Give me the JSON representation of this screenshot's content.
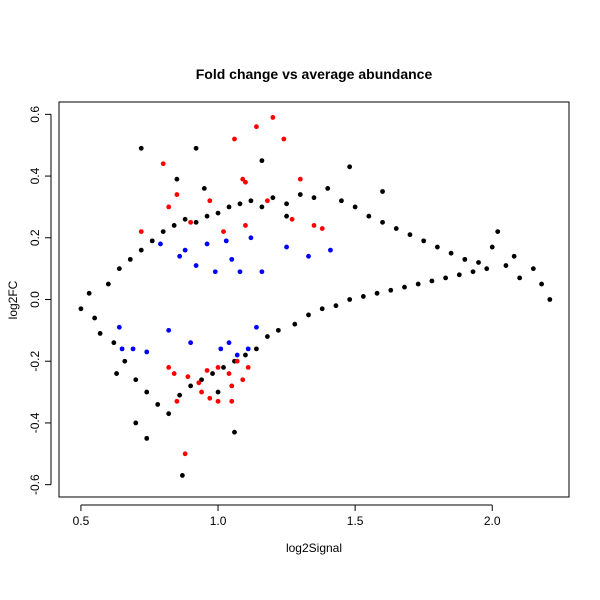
{
  "chart_data": {
    "type": "scatter",
    "title": "Fold change vs average abundance",
    "xlabel": "log2Signal",
    "ylabel": "log2FC",
    "xlim": [
      0.42,
      2.28
    ],
    "ylim": [
      -0.64,
      0.64
    ],
    "x_ticks": [
      {
        "value": 0.5,
        "label": "0.5"
      },
      {
        "value": 1.0,
        "label": "1.0"
      },
      {
        "value": 1.5,
        "label": "1.5"
      },
      {
        "value": 2.0,
        "label": "2.0"
      }
    ],
    "y_ticks": [
      {
        "value": -0.6,
        "label": "-0.6"
      },
      {
        "value": -0.4,
        "label": "-0.4"
      },
      {
        "value": -0.2,
        "label": "-0.2"
      },
      {
        "value": 0.0,
        "label": "0.0"
      },
      {
        "value": 0.2,
        "label": "0.2"
      },
      {
        "value": 0.4,
        "label": "0.4"
      },
      {
        "value": 0.6,
        "label": "0.6"
      }
    ],
    "grid": false,
    "legend": "none",
    "series": [
      {
        "color": "#000000",
        "points": [
          [
            0.5,
            -0.03
          ],
          [
            0.53,
            0.02
          ],
          [
            0.55,
            -0.06
          ],
          [
            0.57,
            -0.11
          ],
          [
            0.6,
            0.05
          ],
          [
            0.62,
            -0.14
          ],
          [
            0.64,
            0.1
          ],
          [
            0.66,
            -0.2
          ],
          [
            0.68,
            0.13
          ],
          [
            0.7,
            -0.26
          ],
          [
            0.72,
            0.16
          ],
          [
            0.74,
            -0.3
          ],
          [
            0.76,
            0.19
          ],
          [
            0.78,
            -0.34
          ],
          [
            0.8,
            0.22
          ],
          [
            0.82,
            -0.37
          ],
          [
            0.84,
            0.24
          ],
          [
            0.86,
            -0.31
          ],
          [
            0.88,
            0.26
          ],
          [
            0.9,
            -0.28
          ],
          [
            0.92,
            0.25
          ],
          [
            0.94,
            -0.26
          ],
          [
            0.96,
            0.27
          ],
          [
            0.98,
            -0.24
          ],
          [
            1.0,
            0.28
          ],
          [
            1.02,
            -0.22
          ],
          [
            1.04,
            0.3
          ],
          [
            1.06,
            -0.2
          ],
          [
            1.08,
            0.31
          ],
          [
            1.1,
            -0.18
          ],
          [
            1.12,
            0.32
          ],
          [
            1.14,
            -0.16
          ],
          [
            1.16,
            0.3
          ],
          [
            1.18,
            -0.12
          ],
          [
            1.2,
            0.33
          ],
          [
            1.22,
            -0.1
          ],
          [
            1.25,
            0.31
          ],
          [
            1.28,
            -0.08
          ],
          [
            1.3,
            0.34
          ],
          [
            1.33,
            -0.05
          ],
          [
            1.35,
            0.33
          ],
          [
            1.38,
            -0.03
          ],
          [
            1.4,
            0.36
          ],
          [
            1.43,
            -0.02
          ],
          [
            1.45,
            0.32
          ],
          [
            1.48,
            0.0
          ],
          [
            1.5,
            0.3
          ],
          [
            1.53,
            0.01
          ],
          [
            1.55,
            0.27
          ],
          [
            1.58,
            0.02
          ],
          [
            1.6,
            0.25
          ],
          [
            1.63,
            0.03
          ],
          [
            1.65,
            0.23
          ],
          [
            1.68,
            0.04
          ],
          [
            1.7,
            0.21
          ],
          [
            1.73,
            0.05
          ],
          [
            1.75,
            0.19
          ],
          [
            1.78,
            0.06
          ],
          [
            1.8,
            0.17
          ],
          [
            1.83,
            0.07
          ],
          [
            1.85,
            0.15
          ],
          [
            1.88,
            0.08
          ],
          [
            1.9,
            0.13
          ],
          [
            1.93,
            0.09
          ],
          [
            1.95,
            0.12
          ],
          [
            1.98,
            0.1
          ],
          [
            2.0,
            0.17
          ],
          [
            2.02,
            0.22
          ],
          [
            2.05,
            0.11
          ],
          [
            2.08,
            0.14
          ],
          [
            2.1,
            0.07
          ],
          [
            2.15,
            0.1
          ],
          [
            2.18,
            0.05
          ],
          [
            2.21,
            0.0
          ],
          [
            0.72,
            0.49
          ],
          [
            0.92,
            0.49
          ],
          [
            0.85,
            0.39
          ],
          [
            1.16,
            0.45
          ],
          [
            1.48,
            0.43
          ],
          [
            0.87,
            -0.57
          ],
          [
            0.74,
            -0.45
          ],
          [
            0.7,
            -0.4
          ],
          [
            1.06,
            -0.43
          ],
          [
            0.95,
            0.36
          ],
          [
            1.0,
            -0.3
          ],
          [
            1.25,
            0.27
          ],
          [
            0.63,
            -0.24
          ],
          [
            1.6,
            0.35
          ]
        ]
      },
      {
        "color": "#ff0000",
        "points": [
          [
            1.2,
            0.59
          ],
          [
            1.14,
            0.56
          ],
          [
            1.06,
            0.52
          ],
          [
            1.24,
            0.52
          ],
          [
            0.8,
            0.44
          ],
          [
            1.09,
            0.39
          ],
          [
            1.3,
            0.39
          ],
          [
            1.1,
            0.38
          ],
          [
            0.85,
            0.34
          ],
          [
            0.97,
            0.32
          ],
          [
            1.18,
            0.32
          ],
          [
            0.82,
            0.3
          ],
          [
            1.27,
            0.26
          ],
          [
            0.9,
            0.25
          ],
          [
            1.02,
            0.22
          ],
          [
            1.1,
            0.24
          ],
          [
            1.35,
            0.24
          ],
          [
            1.38,
            0.23
          ],
          [
            0.72,
            0.22
          ],
          [
            0.82,
            -0.22
          ],
          [
            0.84,
            -0.24
          ],
          [
            0.89,
            -0.25
          ],
          [
            0.93,
            -0.27
          ],
          [
            0.96,
            -0.23
          ],
          [
            1.0,
            -0.22
          ],
          [
            1.04,
            -0.24
          ],
          [
            1.07,
            -0.2
          ],
          [
            1.09,
            -0.26
          ],
          [
            1.11,
            -0.22
          ],
          [
            0.94,
            -0.3
          ],
          [
            0.97,
            -0.32
          ],
          [
            1.0,
            -0.33
          ],
          [
            1.05,
            -0.33
          ],
          [
            0.85,
            -0.33
          ],
          [
            1.05,
            -0.28
          ],
          [
            0.88,
            -0.5
          ]
        ]
      },
      {
        "color": "#0000ff",
        "points": [
          [
            0.79,
            0.18
          ],
          [
            0.86,
            0.14
          ],
          [
            0.88,
            0.16
          ],
          [
            0.92,
            0.11
          ],
          [
            0.96,
            0.18
          ],
          [
            0.99,
            0.09
          ],
          [
            1.03,
            0.19
          ],
          [
            1.05,
            0.13
          ],
          [
            1.08,
            0.09
          ],
          [
            1.12,
            0.2
          ],
          [
            1.16,
            0.09
          ],
          [
            1.25,
            0.17
          ],
          [
            1.33,
            0.14
          ],
          [
            1.41,
            0.16
          ],
          [
            0.64,
            -0.09
          ],
          [
            0.65,
            -0.16
          ],
          [
            0.69,
            -0.16
          ],
          [
            0.74,
            -0.17
          ],
          [
            0.82,
            -0.1
          ],
          [
            0.9,
            -0.14
          ],
          [
            1.01,
            -0.16
          ],
          [
            1.04,
            -0.14
          ],
          [
            1.07,
            -0.18
          ],
          [
            1.11,
            -0.16
          ],
          [
            1.14,
            -0.09
          ]
        ]
      }
    ]
  }
}
